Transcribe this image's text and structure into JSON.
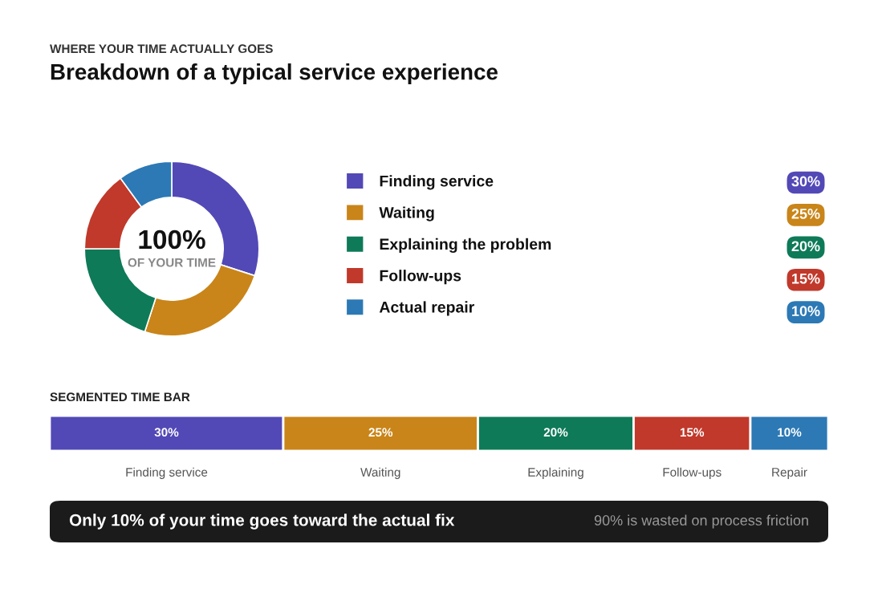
{
  "chart_data": [
    {
      "type": "donut",
      "subtitle": "WHERE YOUR TIME ACTUALLY GOES",
      "title": "Breakdown of a typical service experience",
      "categories": [
        "Finding service",
        "Waiting",
        "Explaining the problem",
        "Follow-ups",
        "Actual repair"
      ],
      "values": [
        30,
        25,
        20,
        15,
        10
      ],
      "colors": [
        "#5249b6",
        "#c98519",
        "#0e7a58",
        "#c0392b",
        "#2c79b5"
      ],
      "value_labels": [
        "30%",
        "25%",
        "20%",
        "15%",
        "10%"
      ],
      "legend": "right",
      "annotations": [
        "100%",
        "OF YOUR TIME"
      ]
    },
    {
      "type": "bar",
      "title": "SEGMENTED TIME BAR",
      "orientation": "horizontal",
      "stacked": true,
      "categories": [
        null
      ],
      "series": [
        {
          "name": "Finding service",
          "color": "#5249b6",
          "values": [
            30
          ],
          "value_labels": [
            "30%"
          ]
        },
        {
          "name": "Waiting",
          "color": "#c98519",
          "values": [
            25
          ],
          "value_labels": [
            "25%"
          ]
        },
        {
          "name": "Explaining",
          "color": "#0e7a58",
          "values": [
            20
          ],
          "value_labels": [
            "20%"
          ]
        },
        {
          "name": "Follow-ups",
          "color": "#c0392b",
          "values": [
            15
          ],
          "value_labels": [
            "15%"
          ]
        },
        {
          "name": "Repair",
          "color": "#2c79b5",
          "values": [
            10
          ],
          "value_labels": [
            "10%"
          ]
        }
      ],
      "annotations": [
        "Only 10% of your time goes toward the actual fix",
        "90% is wasted on process friction"
      ]
    }
  ]
}
